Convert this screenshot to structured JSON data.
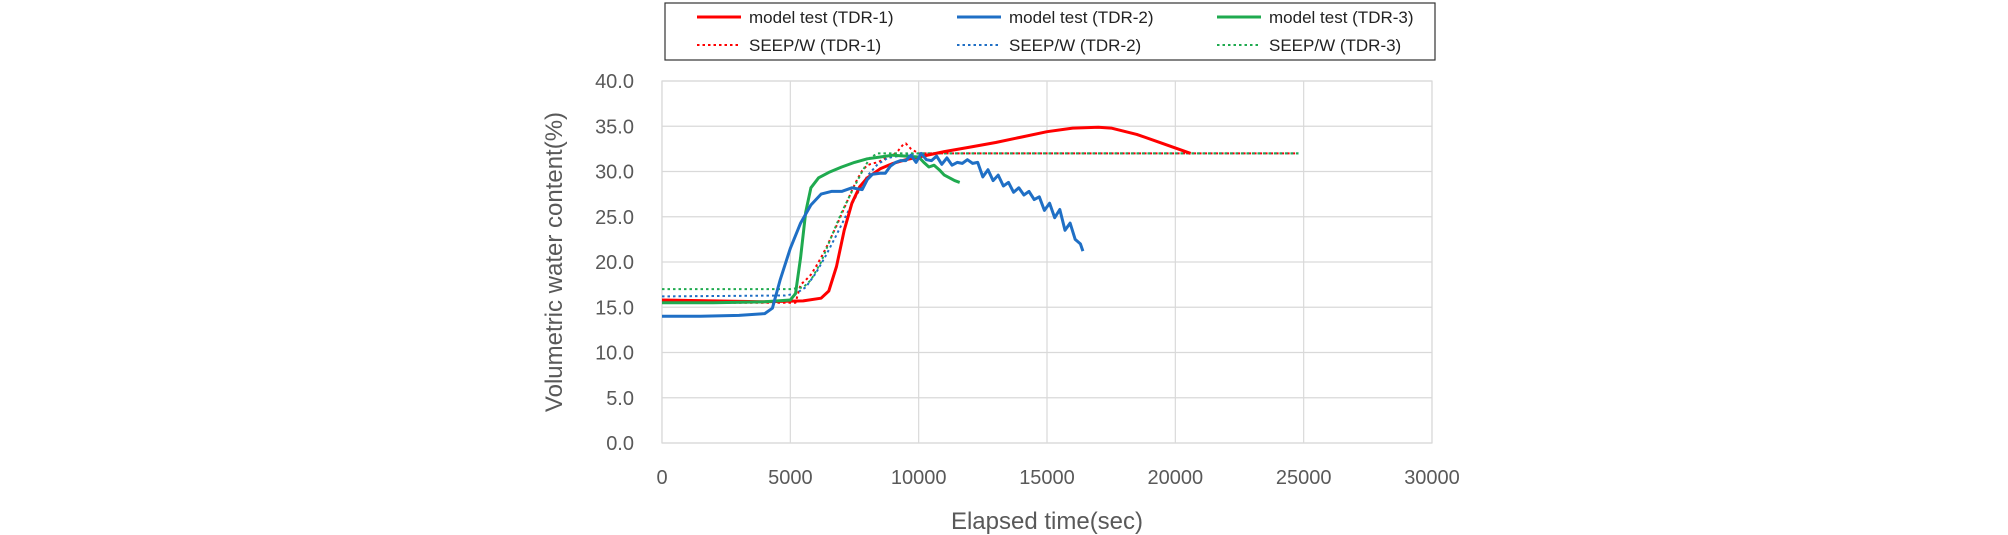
{
  "chart_data": {
    "type": "line",
    "xlabel": "Elapsed time(sec)",
    "ylabel": "Volumetric water content(%)",
    "xlim": [
      0,
      30000
    ],
    "ylim": [
      0,
      40
    ],
    "x_ticks": [
      "0",
      "5000",
      "10000",
      "15000",
      "20000",
      "25000",
      "30000"
    ],
    "y_ticks": [
      "0.0",
      "5.0",
      "10.0",
      "15.0",
      "20.0",
      "25.0",
      "30.0",
      "35.0",
      "40.0"
    ],
    "grid": true,
    "legend_position": "top",
    "series": [
      {
        "name": "model test (TDR-1)",
        "color": "#ff0000",
        "style": "solid",
        "points": [
          [
            0,
            15.8
          ],
          [
            2000,
            15.7
          ],
          [
            4000,
            15.6
          ],
          [
            5500,
            15.7
          ],
          [
            6200,
            16.0
          ],
          [
            6500,
            16.8
          ],
          [
            6800,
            19.5
          ],
          [
            7100,
            23.5
          ],
          [
            7400,
            26.5
          ],
          [
            7700,
            28.3
          ],
          [
            8000,
            29.3
          ],
          [
            8500,
            30.3
          ],
          [
            9000,
            30.9
          ],
          [
            9500,
            31.3
          ],
          [
            10000,
            31.6
          ],
          [
            11000,
            32.2
          ],
          [
            12000,
            32.7
          ],
          [
            13000,
            33.2
          ],
          [
            14000,
            33.8
          ],
          [
            15000,
            34.4
          ],
          [
            16000,
            34.8
          ],
          [
            17000,
            34.9
          ],
          [
            17500,
            34.8
          ],
          [
            18500,
            34.1
          ],
          [
            19500,
            33.1
          ],
          [
            20200,
            32.4
          ],
          [
            20600,
            32.0
          ]
        ]
      },
      {
        "name": "model test (TDR-2)",
        "color": "#1f6fc5",
        "style": "solid",
        "points": [
          [
            0,
            14.0
          ],
          [
            1500,
            14.0
          ],
          [
            3000,
            14.1
          ],
          [
            4000,
            14.3
          ],
          [
            4300,
            14.9
          ],
          [
            4600,
            18.0
          ],
          [
            5000,
            21.5
          ],
          [
            5400,
            24.3
          ],
          [
            5800,
            26.3
          ],
          [
            6200,
            27.5
          ],
          [
            6600,
            27.8
          ],
          [
            7000,
            27.8
          ],
          [
            7400,
            28.2
          ],
          [
            7800,
            28.0
          ],
          [
            8000,
            29.1
          ],
          [
            8200,
            29.7
          ],
          [
            8500,
            29.8
          ],
          [
            8700,
            29.8
          ],
          [
            8900,
            30.6
          ],
          [
            9100,
            31.0
          ],
          [
            9300,
            31.2
          ],
          [
            9500,
            31.2
          ],
          [
            9700,
            31.8
          ],
          [
            9900,
            31.0
          ],
          [
            10100,
            32.0
          ],
          [
            10300,
            31.3
          ],
          [
            10500,
            31.2
          ],
          [
            10700,
            31.7
          ],
          [
            10900,
            30.8
          ],
          [
            11100,
            31.5
          ],
          [
            11300,
            30.7
          ],
          [
            11500,
            31.0
          ],
          [
            11700,
            30.9
          ],
          [
            11900,
            31.3
          ],
          [
            12100,
            30.9
          ],
          [
            12300,
            31.0
          ],
          [
            12500,
            29.4
          ],
          [
            12700,
            30.2
          ],
          [
            12900,
            29.0
          ],
          [
            13100,
            29.6
          ],
          [
            13300,
            28.4
          ],
          [
            13500,
            28.8
          ],
          [
            13700,
            27.7
          ],
          [
            13900,
            28.2
          ],
          [
            14100,
            27.4
          ],
          [
            14300,
            27.8
          ],
          [
            14500,
            26.9
          ],
          [
            14700,
            27.2
          ],
          [
            14900,
            25.7
          ],
          [
            15100,
            26.5
          ],
          [
            15300,
            24.9
          ],
          [
            15500,
            25.8
          ],
          [
            15700,
            23.5
          ],
          [
            15900,
            24.3
          ],
          [
            16100,
            22.5
          ],
          [
            16300,
            22.0
          ],
          [
            16400,
            21.2
          ]
        ]
      },
      {
        "name": "model test (TDR-3)",
        "color": "#1faa4f",
        "style": "solid",
        "points": [
          [
            0,
            15.5
          ],
          [
            2000,
            15.5
          ],
          [
            4000,
            15.6
          ],
          [
            5000,
            15.8
          ],
          [
            5200,
            16.5
          ],
          [
            5400,
            20.5
          ],
          [
            5600,
            25.5
          ],
          [
            5800,
            28.2
          ],
          [
            6100,
            29.3
          ],
          [
            6500,
            29.9
          ],
          [
            7000,
            30.5
          ],
          [
            7500,
            31.0
          ],
          [
            8000,
            31.4
          ],
          [
            8500,
            31.6
          ],
          [
            9000,
            31.8
          ],
          [
            9500,
            31.7
          ],
          [
            10000,
            31.6
          ],
          [
            10200,
            31.0
          ],
          [
            10400,
            30.5
          ],
          [
            10600,
            30.7
          ],
          [
            10800,
            30.2
          ],
          [
            11000,
            29.6
          ],
          [
            11200,
            29.3
          ],
          [
            11400,
            29.0
          ],
          [
            11600,
            28.8
          ]
        ]
      },
      {
        "name": "SEEP/W (TDR-1)",
        "color": "#ff0000",
        "style": "dotted",
        "points": [
          [
            0,
            15.5
          ],
          [
            5200,
            15.5
          ],
          [
            5400,
            17.5
          ],
          [
            5600,
            18.0
          ],
          [
            5800,
            18.6
          ],
          [
            6000,
            19.5
          ],
          [
            6200,
            20.5
          ],
          [
            6400,
            21.6
          ],
          [
            6600,
            22.8
          ],
          [
            6800,
            24.0
          ],
          [
            7000,
            25.3
          ],
          [
            7200,
            26.6
          ],
          [
            7400,
            27.9
          ],
          [
            7600,
            29.1
          ],
          [
            7800,
            30.1
          ],
          [
            8000,
            30.7
          ],
          [
            8200,
            30.9
          ],
          [
            8400,
            31.0
          ],
          [
            8600,
            31.3
          ],
          [
            8800,
            31.6
          ],
          [
            9000,
            31.8
          ],
          [
            9200,
            32.3
          ],
          [
            9400,
            33.0
          ],
          [
            9500,
            33.1
          ],
          [
            9700,
            32.5
          ],
          [
            10000,
            32.0
          ],
          [
            11000,
            32.0
          ],
          [
            24800,
            32.0
          ]
        ]
      },
      {
        "name": "SEEP/W (TDR-2)",
        "color": "#1f6fc5",
        "style": "dotted",
        "points": [
          [
            0,
            16.2
          ],
          [
            4800,
            16.3
          ],
          [
            5200,
            16.5
          ],
          [
            5600,
            17.2
          ],
          [
            6000,
            18.8
          ],
          [
            6400,
            20.8
          ],
          [
            6800,
            23.0
          ],
          [
            7200,
            25.3
          ],
          [
            7600,
            27.5
          ],
          [
            8000,
            29.5
          ],
          [
            8400,
            30.8
          ],
          [
            8800,
            31.5
          ],
          [
            9200,
            31.7
          ],
          [
            9600,
            31.9
          ],
          [
            10000,
            32.0
          ],
          [
            11000,
            32.0
          ],
          [
            24800,
            32.0
          ]
        ]
      },
      {
        "name": "SEEP/W (TDR-3)",
        "color": "#1faa4f",
        "style": "dotted",
        "points": [
          [
            0,
            17.0
          ],
          [
            5000,
            17.0
          ],
          [
            5500,
            17.2
          ],
          [
            5800,
            18.0
          ],
          [
            6200,
            20.0
          ],
          [
            6600,
            22.8
          ],
          [
            7000,
            25.5
          ],
          [
            7400,
            27.8
          ],
          [
            7800,
            30.0
          ],
          [
            8100,
            31.5
          ],
          [
            8400,
            32.0
          ],
          [
            9000,
            32.0
          ],
          [
            11000,
            32.0
          ],
          [
            24800,
            32.0
          ]
        ]
      }
    ]
  }
}
